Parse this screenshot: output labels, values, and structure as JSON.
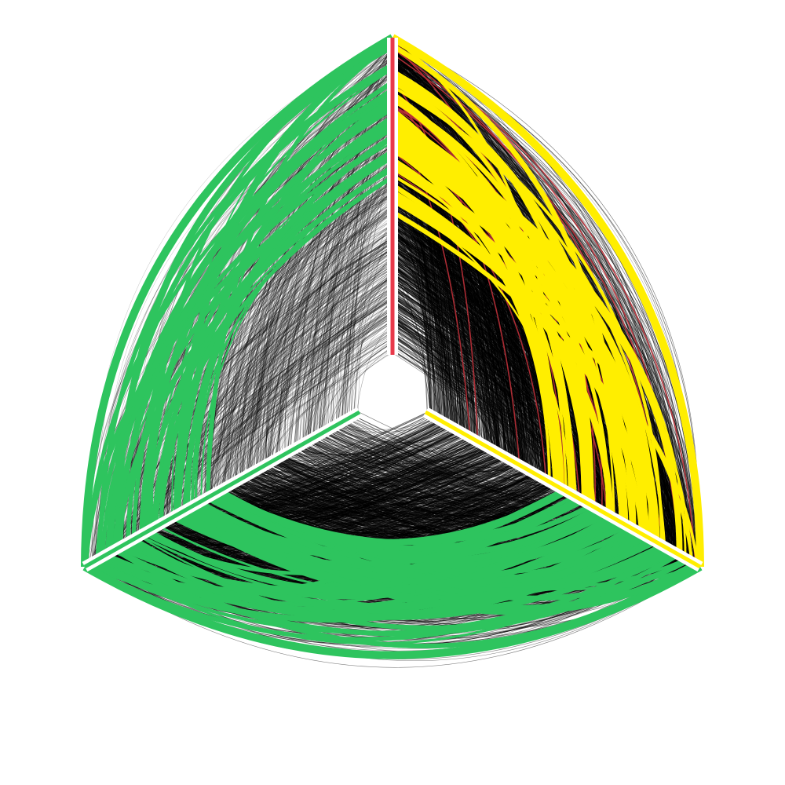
{
  "diagram": {
    "type": "hive-plot",
    "background": "#ffffff",
    "axes": [
      {
        "name": "axis-top",
        "color": "#e8394a",
        "direction": "up"
      },
      {
        "name": "axis-lower-right",
        "color": "#ffee00",
        "direction": "lower-right"
      },
      {
        "name": "axis-lower-left",
        "color": "#2ec45e",
        "direction": "lower-left"
      }
    ],
    "edge_groups": [
      {
        "name": "upper-left-sector",
        "from_axis": "axis-top",
        "to_axis": "axis-lower-left",
        "edge_color": "#000000",
        "highlight_color": "#2ec45e",
        "density": "low"
      },
      {
        "name": "right-sector",
        "from_axis": "axis-top",
        "to_axis": "axis-lower-right",
        "edge_color": "#000000",
        "highlight_color": "#ffee00",
        "accent_color": "#c8323c",
        "density": "high"
      },
      {
        "name": "bottom-sector",
        "from_axis": "axis-lower-right",
        "to_axis": "axis-lower-left",
        "edge_color": "#000000",
        "highlight_color": "#2ec45e",
        "density": "high"
      }
    ]
  }
}
